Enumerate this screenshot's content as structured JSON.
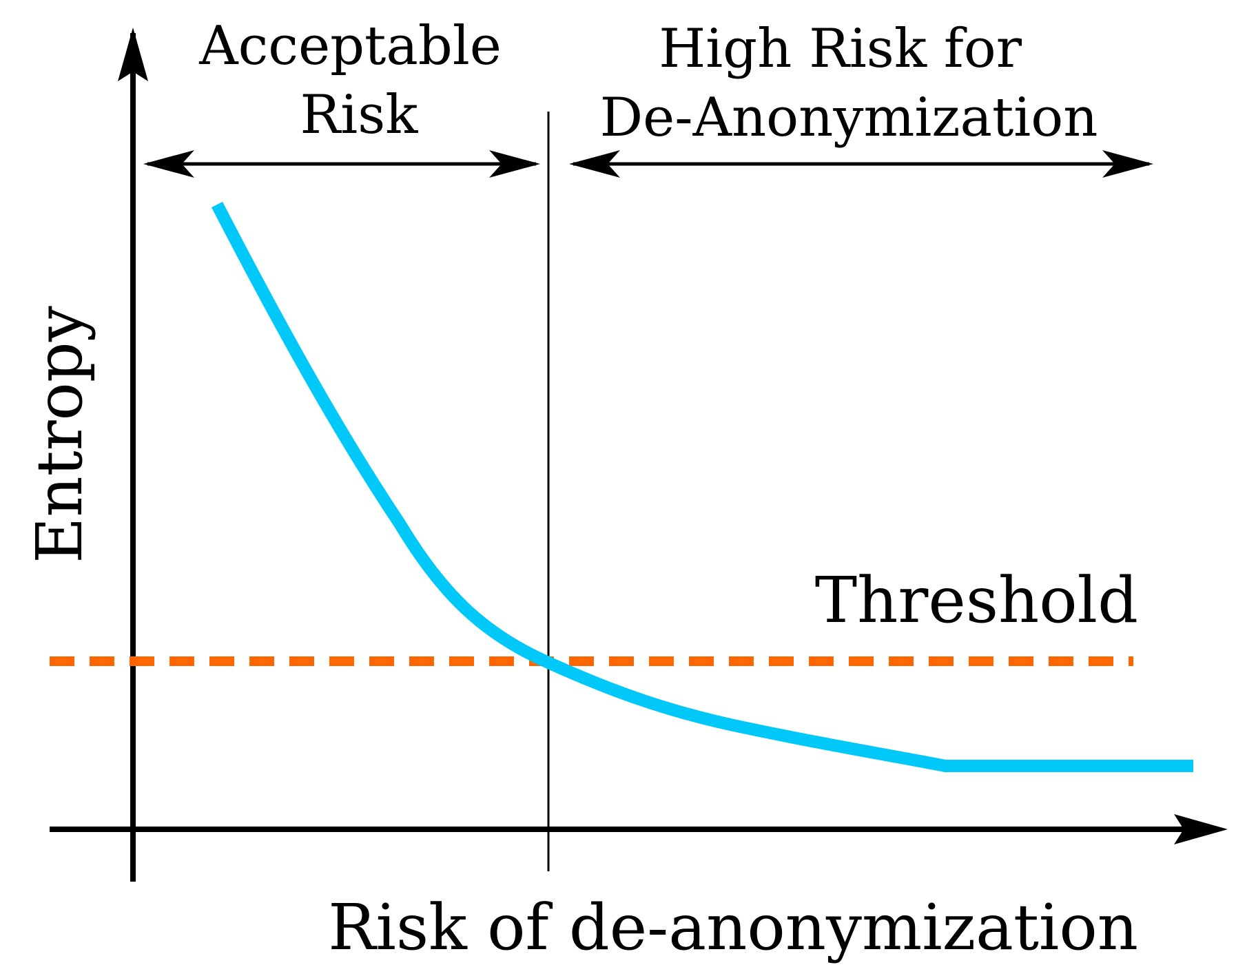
{
  "diagram": {
    "y_axis_label": "Entropy",
    "x_axis_label": "Risk of de-anonymization",
    "regions": [
      {
        "lines": [
          "Acceptable",
          "Risk"
        ]
      },
      {
        "lines": [
          "High Risk for",
          "De-Anonymization"
        ]
      }
    ],
    "threshold_label": "Threshold",
    "colors": {
      "curve": "#00c8f8",
      "threshold_line": "#ff6600",
      "axes": "#000000",
      "background": "#ffffff"
    }
  }
}
